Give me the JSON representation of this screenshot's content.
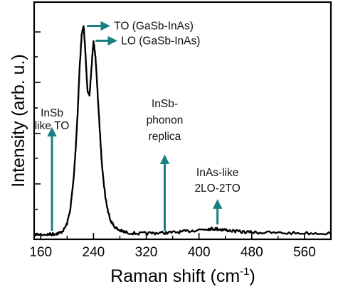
{
  "chart_data": {
    "type": "line",
    "xlabel": "Raman shift (cm",
    "xlabel_sup": "-1",
    "xlabel_close": ")",
    "ylabel": "Intensity (arb. u.)",
    "xlim": [
      150,
      600
    ],
    "ylim": [
      0,
      1
    ],
    "x_ticks": [
      {
        "value": 160,
        "label": "160"
      },
      {
        "value": 240,
        "label": "240"
      },
      {
        "value": 320,
        "label": "320"
      },
      {
        "value": 400,
        "label": "400"
      },
      {
        "value": 480,
        "label": "480"
      },
      {
        "value": 560,
        "label": "560"
      }
    ],
    "y_tick_labels_shown": false,
    "line_color": "#000000",
    "annotation_color": "#188080",
    "series": [
      {
        "x": [
          150,
          160,
          170,
          175,
          180,
          185,
          190,
          195,
          200,
          205,
          210,
          213,
          216,
          219,
          222,
          225,
          228,
          231,
          234,
          237,
          240,
          243,
          246,
          249,
          252,
          255,
          258,
          262,
          266,
          270,
          275,
          280,
          285,
          290,
          300,
          310,
          320,
          330,
          340,
          350,
          360,
          370,
          380,
          390,
          400,
          410,
          415,
          420,
          425,
          430,
          435,
          440,
          450,
          460,
          470,
          480,
          490,
          500,
          520,
          540,
          560,
          580,
          600
        ],
        "y": [
          0.003,
          0.003,
          0.003,
          0.004,
          0.005,
          0.008,
          0.011,
          0.025,
          0.055,
          0.125,
          0.27,
          0.41,
          0.58,
          0.79,
          0.94,
          0.985,
          0.85,
          0.67,
          0.66,
          0.79,
          0.915,
          0.84,
          0.68,
          0.52,
          0.37,
          0.26,
          0.18,
          0.11,
          0.07,
          0.047,
          0.03,
          0.022,
          0.016,
          0.012,
          0.009,
          0.007,
          0.008,
          0.009,
          0.01,
          0.011,
          0.012,
          0.014,
          0.017,
          0.021,
          0.025,
          0.028,
          0.03,
          0.03,
          0.029,
          0.028,
          0.026,
          0.024,
          0.02,
          0.016,
          0.014,
          0.013,
          0.012,
          0.011,
          0.01,
          0.009,
          0.009,
          0.009,
          0.009
        ]
      }
    ],
    "annotations": [
      {
        "id": "to",
        "text": "TO (GaSb-InAs)",
        "type": "right-arrow",
        "x": 229,
        "y": 0.985
      },
      {
        "id": "lo",
        "text": "LO (GaSb-InAs)",
        "type": "right-arrow",
        "x": 242,
        "y": 0.915
      },
      {
        "id": "insb-to",
        "lines": [
          "InSb",
          "like TO"
        ],
        "type": "up-arrow",
        "x": 177,
        "y_from": 0.02,
        "y_to": 0.5
      },
      {
        "id": "insb-replica",
        "lines": [
          "InSb-",
          "phonon",
          "replica"
        ],
        "type": "up-arrow",
        "x": 348,
        "y_from": 0.02,
        "y_to": 0.37
      },
      {
        "id": "inas-2lo",
        "lines": [
          "InAs-like",
          "2LO-2TO"
        ],
        "type": "up-arrow",
        "x": 428,
        "y_from": 0.05,
        "y_to": 0.16
      }
    ]
  }
}
